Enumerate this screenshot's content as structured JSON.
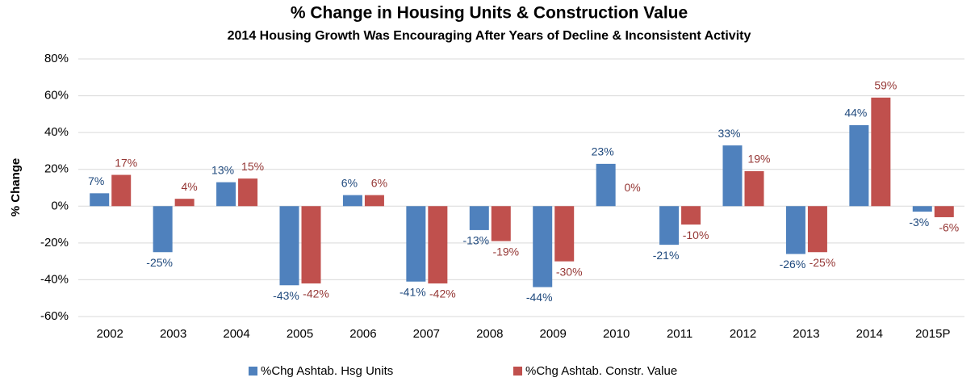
{
  "chart_data": {
    "type": "bar",
    "title": "% Change in Housing Units & Construction Value",
    "subtitle": "2014 Housing Growth Was Encouraging After Years of Decline & Inconsistent Activity",
    "y_label": "% Change",
    "categories": [
      "2002",
      "2003",
      "2004",
      "2005",
      "2006",
      "2007",
      "2008",
      "2009",
      "2010",
      "2011",
      "2012",
      "2013",
      "2014",
      "2015P"
    ],
    "series": [
      {
        "name": "%Chg Ashtab. Hsg Units",
        "color": "#4f81bd",
        "label_color": "#1f497d",
        "values": [
          7,
          -25,
          13,
          -43,
          6,
          -41,
          -13,
          -44,
          23,
          -21,
          33,
          -26,
          44,
          -3
        ],
        "value_labels": [
          "7%",
          "-25%",
          "13%",
          "-43%",
          "6%",
          "-41%",
          "-13%",
          "-44%",
          "23%",
          "-21%",
          "33%",
          "-26%",
          "44%",
          "-3%"
        ]
      },
      {
        "name": "%Chg Ashtab. Constr. Value",
        "color": "#c0504d",
        "label_color": "#953735",
        "values": [
          17,
          4,
          15,
          -42,
          6,
          -42,
          -19,
          -30,
          0,
          -10,
          19,
          -25,
          59,
          -6
        ],
        "value_labels": [
          "17%",
          "4%",
          "15%",
          "-42%",
          "6%",
          "-42%",
          "-19%",
          "-30%",
          "0%",
          "-10%",
          "19%",
          "-25%",
          "59%",
          "-6%"
        ]
      }
    ],
    "ylim": [
      -60,
      80
    ],
    "yticks": [
      {
        "value": -60,
        "label": "-60%"
      },
      {
        "value": -40,
        "label": "-40%"
      },
      {
        "value": -20,
        "label": "-20%"
      },
      {
        "value": 0,
        "label": "0%"
      },
      {
        "value": 20,
        "label": "20%"
      },
      {
        "value": 40,
        "label": "40%"
      },
      {
        "value": 60,
        "label": "60%"
      },
      {
        "value": 80,
        "label": "80%"
      }
    ],
    "grid": true,
    "legend": "bottom"
  }
}
